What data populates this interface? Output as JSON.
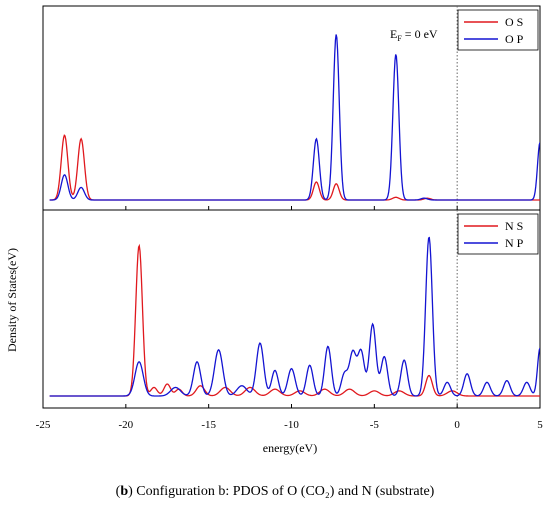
{
  "caption": {
    "label": "b",
    "text": " Configuration b: PDOS of O (CO₂) and N (substrate)"
  },
  "chart_data": {
    "type": "line",
    "xlabel": "energy(eV)",
    "ylabel": "Density of States(eV)",
    "xlim": [
      -25,
      5
    ],
    "xticks": [
      -25,
      -20,
      -15,
      -10,
      -5,
      0,
      5
    ],
    "fermi_line_x": 0,
    "annotation": "E_F = 0 eV",
    "panels": [
      {
        "id": "top",
        "legend_position": "top-right",
        "annotation": {
          "base": "E",
          "sub": "F",
          "rest": " = 0 eV"
        },
        "ylim": [
          0,
          10
        ],
        "series": [
          {
            "name": "O S",
            "color": "#e0191e",
            "peaks": [
              [
                -23.7,
                3.6,
                0.2
              ],
              [
                -22.7,
                3.4,
                0.2
              ],
              [
                -8.5,
                1.0,
                0.18
              ],
              [
                -7.3,
                0.9,
                0.18
              ],
              [
                -3.7,
                0.15,
                0.2
              ],
              [
                -1.8,
                0.1,
                0.2
              ]
            ]
          },
          {
            "name": "O P",
            "color": "#1414d2",
            "peaks": [
              [
                -23.7,
                1.4,
                0.2
              ],
              [
                -22.7,
                0.7,
                0.2
              ],
              [
                -8.5,
                3.4,
                0.18
              ],
              [
                -7.3,
                9.2,
                0.18
              ],
              [
                -3.7,
                8.1,
                0.18
              ],
              [
                -2.0,
                0.1,
                0.2
              ],
              [
                5.0,
                3.2,
                0.15
              ]
            ]
          }
        ]
      },
      {
        "id": "bottom",
        "legend_position": "top-right",
        "ylim": [
          0,
          10
        ],
        "series": [
          {
            "name": "N S",
            "color": "#e0191e",
            "peaks": [
              [
                -19.2,
                8.8,
                0.2
              ],
              [
                -18.3,
                0.5,
                0.2
              ],
              [
                -17.5,
                0.7,
                0.2
              ],
              [
                -16.8,
                0.4,
                0.2
              ],
              [
                -15.5,
                0.6,
                0.25
              ],
              [
                -14.0,
                0.5,
                0.3
              ],
              [
                -12.5,
                0.5,
                0.3
              ],
              [
                -11.0,
                0.4,
                0.3
              ],
              [
                -9.5,
                0.3,
                0.3
              ],
              [
                -8.0,
                0.4,
                0.3
              ],
              [
                -6.5,
                0.4,
                0.3
              ],
              [
                -5.0,
                0.3,
                0.3
              ],
              [
                -3.5,
                0.3,
                0.3
              ],
              [
                -1.7,
                1.2,
                0.2
              ],
              [
                -0.3,
                0.3,
                0.3
              ]
            ]
          },
          {
            "name": "N P",
            "color": "#1414d2",
            "peaks": [
              [
                -19.2,
                2.0,
                0.25
              ],
              [
                -17.0,
                0.5,
                0.3
              ],
              [
                -15.7,
                2.0,
                0.22
              ],
              [
                -14.4,
                2.7,
                0.25
              ],
              [
                -13.0,
                0.6,
                0.3
              ],
              [
                -11.9,
                3.1,
                0.22
              ],
              [
                -11.0,
                1.5,
                0.2
              ],
              [
                -10.0,
                1.6,
                0.22
              ],
              [
                -8.9,
                1.8,
                0.2
              ],
              [
                -7.8,
                2.9,
                0.2
              ],
              [
                -6.8,
                1.3,
                0.2
              ],
              [
                -6.3,
                2.5,
                0.2
              ],
              [
                -5.8,
                2.6,
                0.2
              ],
              [
                -5.1,
                4.2,
                0.2
              ],
              [
                -4.4,
                2.3,
                0.2
              ],
              [
                -3.2,
                2.1,
                0.2
              ],
              [
                -1.7,
                9.3,
                0.2
              ],
              [
                -0.6,
                0.8,
                0.2
              ],
              [
                0.6,
                1.3,
                0.2
              ],
              [
                1.8,
                0.8,
                0.2
              ],
              [
                3.0,
                0.9,
                0.2
              ],
              [
                4.2,
                0.8,
                0.2
              ],
              [
                5.0,
                2.8,
                0.15
              ]
            ]
          }
        ]
      }
    ]
  }
}
